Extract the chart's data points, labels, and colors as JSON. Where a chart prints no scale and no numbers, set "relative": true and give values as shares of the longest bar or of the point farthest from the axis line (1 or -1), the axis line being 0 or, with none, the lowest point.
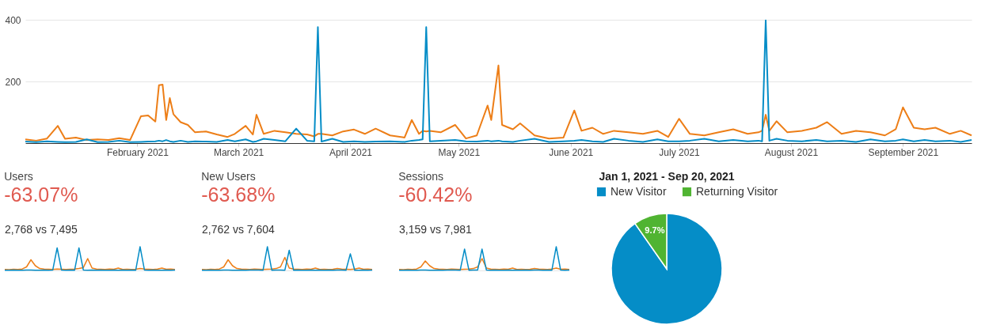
{
  "chart_data": [
    {
      "type": "line",
      "x": [
        "2021-01-01",
        "2021-01-04",
        "2021-01-07",
        "2021-01-10",
        "2021-01-12",
        "2021-01-15",
        "2021-01-18",
        "2021-01-21",
        "2021-01-24",
        "2021-01-27",
        "2021-01-30",
        "2021-02-02",
        "2021-02-04",
        "2021-02-06",
        "2021-02-07",
        "2021-02-08",
        "2021-02-09",
        "2021-02-10",
        "2021-02-11",
        "2021-02-13",
        "2021-02-15",
        "2021-02-17",
        "2021-02-20",
        "2021-02-23",
        "2021-02-26",
        "2021-02-28",
        "2021-03-03",
        "2021-03-05",
        "2021-03-06",
        "2021-03-08",
        "2021-03-11",
        "2021-03-14",
        "2021-03-17",
        "2021-03-20",
        "2021-03-22",
        "2021-03-23",
        "2021-03-24",
        "2021-03-27",
        "2021-03-30",
        "2021-04-02",
        "2021-04-05",
        "2021-04-08",
        "2021-04-12",
        "2021-04-16",
        "2021-04-18",
        "2021-04-20",
        "2021-04-21",
        "2021-04-22",
        "2021-04-23",
        "2021-04-26",
        "2021-04-30",
        "2021-05-03",
        "2021-05-06",
        "2021-05-09",
        "2021-05-10",
        "2021-05-12",
        "2021-05-13",
        "2021-05-16",
        "2021-05-18",
        "2021-05-22",
        "2021-05-26",
        "2021-05-30",
        "2021-06-02",
        "2021-06-04",
        "2021-06-07",
        "2021-06-10",
        "2021-06-13",
        "2021-06-17",
        "2021-06-21",
        "2021-06-25",
        "2021-06-28",
        "2021-07-01",
        "2021-07-04",
        "2021-07-08",
        "2021-07-12",
        "2021-07-16",
        "2021-07-20",
        "2021-07-23",
        "2021-07-24",
        "2021-07-25",
        "2021-07-26",
        "2021-07-28",
        "2021-07-31",
        "2021-08-04",
        "2021-08-08",
        "2021-08-11",
        "2021-08-15",
        "2021-08-19",
        "2021-08-23",
        "2021-08-27",
        "2021-08-30",
        "2021-09-01",
        "2021-09-04",
        "2021-09-07",
        "2021-09-10",
        "2021-09-14",
        "2021-09-17",
        "2021-09-20"
      ],
      "series": [
        {
          "color": "#ed7e17",
          "values": [
            12,
            8,
            15,
            56,
            14,
            18,
            10,
            12,
            10,
            16,
            10,
            87,
            90,
            70,
            188,
            190,
            75,
            146,
            94,
            68,
            59,
            35,
            38,
            28,
            20,
            30,
            56,
            28,
            92,
            30,
            40,
            35,
            30,
            28,
            22,
            30,
            30,
            25,
            38,
            44,
            30,
            47,
            25,
            18,
            75,
            30,
            40,
            38,
            40,
            35,
            59,
            15,
            25,
            122,
            75,
            252,
            59,
            45,
            64,
            25,
            15,
            18,
            106,
            40,
            50,
            30,
            40,
            35,
            30,
            40,
            20,
            79,
            30,
            25,
            35,
            45,
            30,
            35,
            40,
            92,
            40,
            71,
            35,
            40,
            50,
            68,
            30,
            40,
            35,
            25,
            45,
            116,
            50,
            45,
            50,
            30,
            40,
            25
          ]
        },
        {
          "color": "#058dc7",
          "values": [
            5,
            3,
            6,
            4,
            3,
            4,
            12,
            3,
            4,
            8,
            3,
            4,
            5,
            6,
            8,
            6,
            10,
            6,
            4,
            8,
            4,
            6,
            5,
            4,
            10,
            6,
            12,
            4,
            6,
            14,
            10,
            6,
            47,
            8,
            6,
            376,
            5,
            14,
            4,
            6,
            4,
            5,
            6,
            4,
            8,
            10,
            12,
            376,
            6,
            8,
            10,
            6,
            5,
            8,
            6,
            8,
            6,
            4,
            8,
            14,
            4,
            6,
            8,
            10,
            6,
            4,
            14,
            8,
            4,
            12,
            6,
            6,
            8,
            14,
            6,
            10,
            6,
            8,
            6,
            398,
            8,
            14,
            8,
            6,
            10,
            6,
            8,
            4,
            12,
            6,
            8,
            12,
            6,
            10,
            6,
            8,
            4,
            10
          ]
        }
      ],
      "xlim": [
        "2021-01-01",
        "2021-09-20"
      ],
      "xticks": [
        {
          "value": "2021-02-01",
          "label": "February 2021"
        },
        {
          "value": "2021-03-01",
          "label": "March 2021"
        },
        {
          "value": "2021-04-01",
          "label": "April 2021"
        },
        {
          "value": "2021-05-01",
          "label": "May 2021"
        },
        {
          "value": "2021-06-01",
          "label": "June 2021"
        },
        {
          "value": "2021-07-01",
          "label": "July 2021"
        },
        {
          "value": "2021-08-01",
          "label": "August 2021"
        },
        {
          "value": "2021-09-01",
          "label": "September 2021"
        }
      ],
      "ylim": [
        0,
        400
      ],
      "yticks": [
        200,
        400
      ],
      "grid": "y"
    },
    {
      "type": "line",
      "relative": true,
      "title": "Users",
      "subtitle": "-63.07%",
      "annotations": [
        "2,768 vs 7,495"
      ],
      "categories": [
        null,
        null,
        null,
        null,
        null,
        null,
        null,
        null,
        null,
        null,
        null,
        null,
        null,
        null,
        null,
        null,
        null,
        null,
        null,
        null,
        null,
        null,
        null,
        null,
        null,
        null,
        null,
        null,
        null,
        null,
        null,
        null,
        null,
        null,
        null,
        null,
        null,
        null,
        null,
        null
      ],
      "series": [
        {
          "color": "#ed7e17",
          "values": [
            0.04,
            0.03,
            0.05,
            0.04,
            0.06,
            0.15,
            0.45,
            0.2,
            0.08,
            0.06,
            0.05,
            0.04,
            0.06,
            0.05,
            0.04,
            0.05,
            0.06,
            0.08,
            0.12,
            0.5,
            0.1,
            0.06,
            0.05,
            0.04,
            0.06,
            0.05,
            0.1,
            0.04,
            0.05,
            0.04,
            0.05,
            0.08,
            0.06,
            0.05,
            0.04,
            0.06,
            0.1,
            0.05,
            0.06,
            0.04
          ]
        },
        {
          "color": "#058dc7",
          "values": [
            0.01,
            0.01,
            0.02,
            0.01,
            0.01,
            0.02,
            0.02,
            0.01,
            0.01,
            0.02,
            0.01,
            0.02,
            0.95,
            0.02,
            0.01,
            0.02,
            0.01,
            0.95,
            0.02,
            0.01,
            0.02,
            0.01,
            0.02,
            0.01,
            0.01,
            0.02,
            0.01,
            0.02,
            0.01,
            0.02,
            0.01,
            1,
            0.02,
            0.01,
            0.02,
            0.01,
            0.01,
            0.02,
            0.01,
            0.02
          ]
        }
      ]
    },
    {
      "type": "line",
      "relative": true,
      "title": "New Users",
      "subtitle": "-63.68%",
      "annotations": [
        "2,762 vs 7,604"
      ],
      "categories": [
        null,
        null,
        null,
        null,
        null,
        null,
        null,
        null,
        null,
        null,
        null,
        null,
        null,
        null,
        null,
        null,
        null,
        null,
        null,
        null,
        null,
        null,
        null,
        null,
        null,
        null,
        null,
        null,
        null,
        null,
        null,
        null,
        null,
        null,
        null,
        null,
        null,
        null,
        null,
        null
      ],
      "series": [
        {
          "color": "#ed7e17",
          "values": [
            0.04,
            0.03,
            0.05,
            0.04,
            0.06,
            0.15,
            0.45,
            0.2,
            0.08,
            0.06,
            0.05,
            0.04,
            0.06,
            0.05,
            0.04,
            0.05,
            0.06,
            0.08,
            0.15,
            0.55,
            0.1,
            0.06,
            0.05,
            0.04,
            0.06,
            0.05,
            0.1,
            0.04,
            0.05,
            0.04,
            0.05,
            0.08,
            0.06,
            0.05,
            0.04,
            0.06,
            0.1,
            0.05,
            0.06,
            0.04
          ]
        },
        {
          "color": "#058dc7",
          "values": [
            0.01,
            0.01,
            0.02,
            0.01,
            0.01,
            0.02,
            0.02,
            0.01,
            0.01,
            0.02,
            0.01,
            0.02,
            0.02,
            0.02,
            0.01,
            1,
            0.01,
            0.02,
            0.02,
            0.01,
            0.85,
            0.01,
            0.02,
            0.01,
            0.01,
            0.02,
            0.01,
            0.02,
            0.01,
            0.02,
            0.01,
            0.02,
            0.02,
            0.01,
            0.7,
            0.01,
            0.01,
            0.02,
            0.01,
            0.02
          ]
        }
      ]
    },
    {
      "type": "line",
      "relative": true,
      "title": "Sessions",
      "subtitle": "-60.42%",
      "annotations": [
        "3,159 vs 7,981"
      ],
      "categories": [
        null,
        null,
        null,
        null,
        null,
        null,
        null,
        null,
        null,
        null,
        null,
        null,
        null,
        null,
        null,
        null,
        null,
        null,
        null,
        null,
        null,
        null,
        null,
        null,
        null,
        null,
        null,
        null,
        null,
        null,
        null,
        null,
        null,
        null,
        null,
        null,
        null,
        null,
        null,
        null
      ],
      "series": [
        {
          "color": "#ed7e17",
          "values": [
            0.04,
            0.03,
            0.05,
            0.04,
            0.06,
            0.15,
            0.4,
            0.2,
            0.08,
            0.06,
            0.05,
            0.04,
            0.06,
            0.05,
            0.04,
            0.05,
            0.06,
            0.08,
            0.15,
            0.5,
            0.1,
            0.06,
            0.05,
            0.04,
            0.06,
            0.05,
            0.1,
            0.04,
            0.05,
            0.04,
            0.05,
            0.08,
            0.06,
            0.05,
            0.04,
            0.06,
            0.1,
            0.05,
            0.06,
            0.04
          ]
        },
        {
          "color": "#058dc7",
          "values": [
            0.01,
            0.01,
            0.02,
            0.01,
            0.01,
            0.02,
            0.02,
            0.01,
            0.01,
            0.02,
            0.01,
            0.02,
            0.02,
            0.02,
            0.01,
            0.9,
            0.01,
            0.02,
            0.02,
            0.9,
            0.02,
            0.01,
            0.02,
            0.01,
            0.01,
            0.02,
            0.01,
            0.02,
            0.01,
            0.02,
            0.01,
            0.02,
            0.02,
            0.01,
            0.02,
            0.01,
            1,
            0.02,
            0.01,
            0.02
          ]
        }
      ]
    },
    {
      "type": "pie",
      "title": "Jan 1, 2021 - Sep 20, 2021",
      "categories": [
        "New Visitor",
        "Returning Visitor"
      ],
      "values": [
        90.3,
        9.7
      ],
      "colors": [
        "#058dc7",
        "#50b432"
      ],
      "value_labels": [
        null,
        "9.7%"
      ],
      "legend": "top"
    }
  ]
}
